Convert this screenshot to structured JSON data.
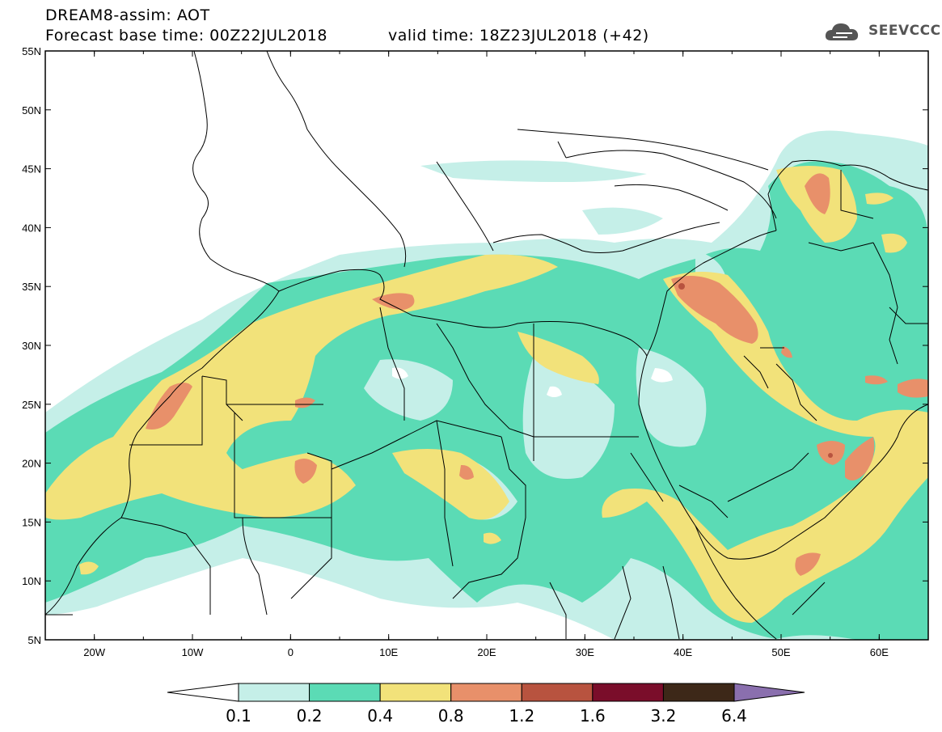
{
  "header": {
    "line1": "DREAM8-assim: AOT",
    "line2_left": "Forecast base time: 00Z22JUL2018",
    "line2_right": "valid time: 18Z23JUL2018 (+42)",
    "logo_text": "SEEVCCC"
  },
  "map": {
    "lat_labels": [
      "55N",
      "50N",
      "45N",
      "40N",
      "35N",
      "30N",
      "25N",
      "20N",
      "15N",
      "10N",
      "5N"
    ],
    "lon_labels": [
      "20W",
      "10W",
      "0",
      "10E",
      "20E",
      "30E",
      "40E",
      "50E",
      "60E"
    ],
    "lat_range": [
      5,
      55
    ],
    "lon_range": [
      -25,
      65
    ]
  },
  "colorbar": {
    "labels": [
      "0.1",
      "0.2",
      "0.4",
      "0.8",
      "1.2",
      "1.6",
      "3.2",
      "6.4"
    ],
    "colors": [
      "#c5efe8",
      "#5bdbb5",
      "#f2e27a",
      "#e8906a",
      "#b8533f",
      "#7a0d2a",
      "#3d2818",
      "#8a6fae"
    ]
  },
  "colors": {
    "c1": "#c5efe8",
    "c2": "#5bdbb5",
    "c3": "#f2e27a",
    "c4": "#e8906a",
    "c5": "#b8533f"
  }
}
